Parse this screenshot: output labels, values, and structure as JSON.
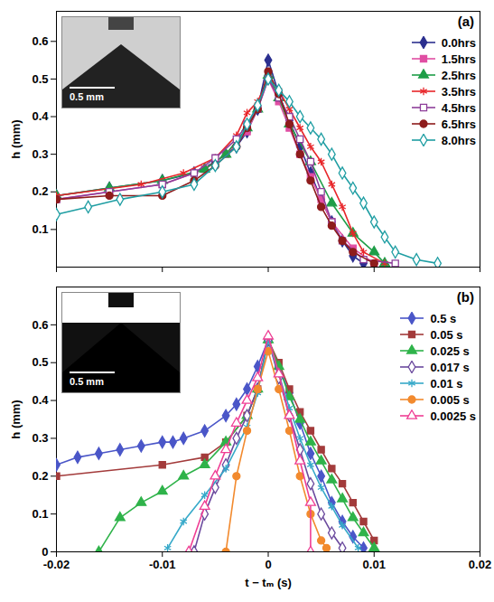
{
  "chart_data": [
    {
      "type": "line",
      "title": "(a)",
      "y_label": "h (mm)",
      "inset_label": "0.5 mm",
      "xlim": [
        -0.02,
        0.02
      ],
      "xticks": [
        -0.02,
        -0.01,
        0,
        0.01,
        0.02
      ],
      "ylim": [
        0,
        0.68
      ],
      "yticks": [
        0.1,
        0.2,
        0.3,
        0.4,
        0.5,
        0.6
      ],
      "tick_labels": "y",
      "grid": false,
      "legend": "upper right",
      "series": [
        {
          "name": "0.0hrs",
          "color": "#2b2f8f",
          "marker": "diamond",
          "x": [
            -0.02,
            -0.015,
            -0.01,
            -0.007,
            -0.005,
            -0.003,
            -0.002,
            -0.001,
            0,
            0.001,
            0.002,
            0.003,
            0.004,
            0.005,
            0.006,
            0.007,
            0.008,
            0.009
          ],
          "values": [
            0.19,
            0.21,
            0.23,
            0.25,
            0.28,
            0.32,
            0.36,
            0.42,
            0.55,
            0.46,
            0.39,
            0.32,
            0.25,
            0.18,
            0.12,
            0.07,
            0.03,
            0.01
          ]
        },
        {
          "name": "1.5hrs",
          "color": "#e04ea3",
          "marker": "square",
          "x": [
            -0.02,
            -0.015,
            -0.01,
            -0.006,
            -0.004,
            -0.002,
            -0.001,
            0,
            0.001,
            0.002,
            0.003,
            0.004,
            0.005,
            0.006,
            0.008,
            0.01
          ],
          "values": [
            0.18,
            0.2,
            0.22,
            0.26,
            0.3,
            0.36,
            0.42,
            0.5,
            0.44,
            0.37,
            0.3,
            0.24,
            0.18,
            0.12,
            0.05,
            0.01
          ]
        },
        {
          "name": "2.5hrs",
          "color": "#1f9e48",
          "marker": "triangle",
          "x": [
            -0.02,
            -0.015,
            -0.01,
            -0.006,
            -0.004,
            -0.002,
            -0.001,
            0,
            0.001,
            0.002,
            0.004,
            0.006,
            0.008,
            0.01,
            0.011
          ],
          "values": [
            0.19,
            0.21,
            0.23,
            0.26,
            0.3,
            0.37,
            0.42,
            0.51,
            0.45,
            0.38,
            0.28,
            0.17,
            0.09,
            0.04,
            0.01
          ]
        },
        {
          "name": "3.5hrs",
          "color": "#e8262a",
          "marker": "asterisk",
          "x": [
            -0.02,
            -0.012,
            -0.008,
            -0.005,
            -0.003,
            -0.002,
            -0.001,
            0,
            0.001,
            0.002,
            0.003,
            0.004,
            0.005,
            0.006,
            0.007,
            0.008,
            0.009,
            0.011
          ],
          "values": [
            0.19,
            0.22,
            0.25,
            0.29,
            0.35,
            0.41,
            0.44,
            0.5,
            0.47,
            0.42,
            0.37,
            0.32,
            0.28,
            0.22,
            0.16,
            0.09,
            0.04,
            0.01
          ]
        },
        {
          "name": "4.5hrs",
          "color": "#8e3f9a",
          "marker": "open_square",
          "x": [
            -0.02,
            -0.015,
            -0.01,
            -0.007,
            -0.005,
            -0.003,
            -0.002,
            -0.001,
            0,
            0.001,
            0.002,
            0.003,
            0.004,
            0.005,
            0.006,
            0.007,
            0.009,
            0.012
          ],
          "values": [
            0.18,
            0.2,
            0.22,
            0.25,
            0.29,
            0.34,
            0.38,
            0.42,
            0.5,
            0.45,
            0.4,
            0.34,
            0.28,
            0.2,
            0.12,
            0.07,
            0.02,
            0.01
          ]
        },
        {
          "name": "6.5hrs",
          "color": "#8e1c1c",
          "marker": "circle",
          "x": [
            -0.02,
            -0.015,
            -0.01,
            -0.007,
            -0.005,
            -0.003,
            -0.002,
            -0.001,
            0,
            0.001,
            0.002,
            0.003,
            0.004,
            0.005,
            0.006,
            0.007,
            0.008,
            0.01
          ],
          "values": [
            0.18,
            0.19,
            0.19,
            0.23,
            0.27,
            0.32,
            0.37,
            0.42,
            0.52,
            0.46,
            0.38,
            0.3,
            0.23,
            0.16,
            0.11,
            0.07,
            0.04,
            0.01
          ]
        },
        {
          "name": "8.0hrs",
          "color": "#1f9ea3",
          "marker": "open_diamond",
          "x": [
            -0.02,
            -0.017,
            -0.014,
            -0.01,
            -0.007,
            -0.005,
            -0.003,
            -0.002,
            -0.001,
            0,
            0.001,
            0.002,
            0.003,
            0.004,
            0.005,
            0.006,
            0.007,
            0.008,
            0.009,
            0.01,
            0.011,
            0.012,
            0.014,
            0.016
          ],
          "values": [
            0.14,
            0.16,
            0.18,
            0.2,
            0.22,
            0.27,
            0.32,
            0.38,
            0.43,
            0.5,
            0.47,
            0.44,
            0.4,
            0.37,
            0.34,
            0.3,
            0.25,
            0.21,
            0.17,
            0.12,
            0.08,
            0.04,
            0.02,
            0.01
          ]
        }
      ]
    },
    {
      "type": "line",
      "title": "(b)",
      "x_label": "t − tₘ (s)",
      "y_label": "h (mm)",
      "inset_label": "0.5 mm",
      "xlim": [
        -0.02,
        0.02
      ],
      "xticks": [
        -0.02,
        -0.01,
        0,
        0.01,
        0.02
      ],
      "ylim": [
        0,
        0.7
      ],
      "yticks": [
        0,
        0.1,
        0.2,
        0.3,
        0.4,
        0.5,
        0.6
      ],
      "grid": false,
      "legend": "upper right",
      "series": [
        {
          "name": "0.5 s",
          "color": "#4a56c8",
          "marker": "diamond",
          "x": [
            -0.02,
            -0.018,
            -0.016,
            -0.014,
            -0.012,
            -0.01,
            -0.009,
            -0.008,
            -0.006,
            -0.004,
            -0.003,
            -0.002,
            -0.001,
            0,
            0.001,
            0.002,
            0.003,
            0.004,
            0.005,
            0.006,
            0.007,
            0.008,
            0.009
          ],
          "values": [
            0.23,
            0.25,
            0.26,
            0.27,
            0.28,
            0.29,
            0.29,
            0.3,
            0.32,
            0.36,
            0.39,
            0.43,
            0.49,
            0.56,
            0.49,
            0.42,
            0.34,
            0.26,
            0.2,
            0.13,
            0.08,
            0.04,
            0.01
          ]
        },
        {
          "name": "0.05 s",
          "color": "#a33b3b",
          "marker": "square",
          "x": [
            -0.02,
            -0.01,
            -0.006,
            -0.004,
            -0.002,
            -0.001,
            0,
            0.001,
            0.002,
            0.003,
            0.004,
            0.005,
            0.006,
            0.007,
            0.008,
            0.009,
            0.01
          ],
          "values": [
            0.2,
            0.23,
            0.25,
            0.29,
            0.36,
            0.43,
            0.56,
            0.5,
            0.43,
            0.37,
            0.32,
            0.27,
            0.22,
            0.18,
            0.13,
            0.08,
            0.03
          ]
        },
        {
          "name": "0.025 s",
          "color": "#2fb34a",
          "marker": "triangle",
          "x": [
            -0.016,
            -0.014,
            -0.012,
            -0.01,
            -0.008,
            -0.006,
            -0.004,
            -0.002,
            -0.001,
            0,
            0.001,
            0.002,
            0.003,
            0.004,
            0.005,
            0.006,
            0.007,
            0.008,
            0.009,
            0.01
          ],
          "values": [
            0,
            0.09,
            0.13,
            0.16,
            0.2,
            0.23,
            0.29,
            0.36,
            0.43,
            0.56,
            0.49,
            0.41,
            0.35,
            0.29,
            0.24,
            0.19,
            0.14,
            0.09,
            0.05,
            0.01
          ]
        },
        {
          "name": "0.017 s",
          "color": "#6b4a9e",
          "marker": "open_diamond",
          "x": [
            -0.007,
            -0.006,
            -0.005,
            -0.004,
            -0.003,
            -0.002,
            -0.001,
            0,
            0.001,
            0.002,
            0.003,
            0.004,
            0.005,
            0.006,
            0.007
          ],
          "values": [
            0,
            0.1,
            0.17,
            0.23,
            0.3,
            0.36,
            0.43,
            0.56,
            0.46,
            0.36,
            0.27,
            0.18,
            0.1,
            0.05,
            0.01
          ]
        },
        {
          "name": "0.01 s",
          "color": "#36a9c9",
          "marker": "asterisk",
          "x": [
            -0.0095,
            -0.008,
            -0.006,
            -0.004,
            -0.002,
            -0.001,
            0,
            0.001,
            0.002,
            0.003,
            0.004,
            0.005,
            0.006,
            0.007,
            0.0085
          ],
          "values": [
            0.01,
            0.08,
            0.15,
            0.22,
            0.33,
            0.42,
            0.56,
            0.47,
            0.38,
            0.3,
            0.23,
            0.17,
            0.12,
            0.07,
            0.01
          ]
        },
        {
          "name": "0.005 s",
          "color": "#f28a2e",
          "marker": "circle",
          "x": [
            -0.004,
            -0.003,
            -0.002,
            -0.001,
            0,
            0.001,
            0.002,
            0.003,
            0.004,
            0.005,
            0.0055
          ],
          "values": [
            0,
            0.2,
            0.32,
            0.43,
            0.53,
            0.43,
            0.32,
            0.2,
            0.1,
            0.03,
            0.01
          ]
        },
        {
          "name": "0.0025 s",
          "color": "#ef3e94",
          "marker": "open_triangle",
          "x": [
            -0.0075,
            -0.006,
            -0.005,
            -0.004,
            -0.003,
            -0.002,
            -0.001,
            0,
            0.001,
            0.002,
            0.003,
            0.004,
            0.004
          ],
          "values": [
            0,
            0.12,
            0.2,
            0.27,
            0.34,
            0.4,
            0.46,
            0.57,
            0.47,
            0.36,
            0.24,
            0.13,
            0
          ]
        }
      ]
    }
  ]
}
